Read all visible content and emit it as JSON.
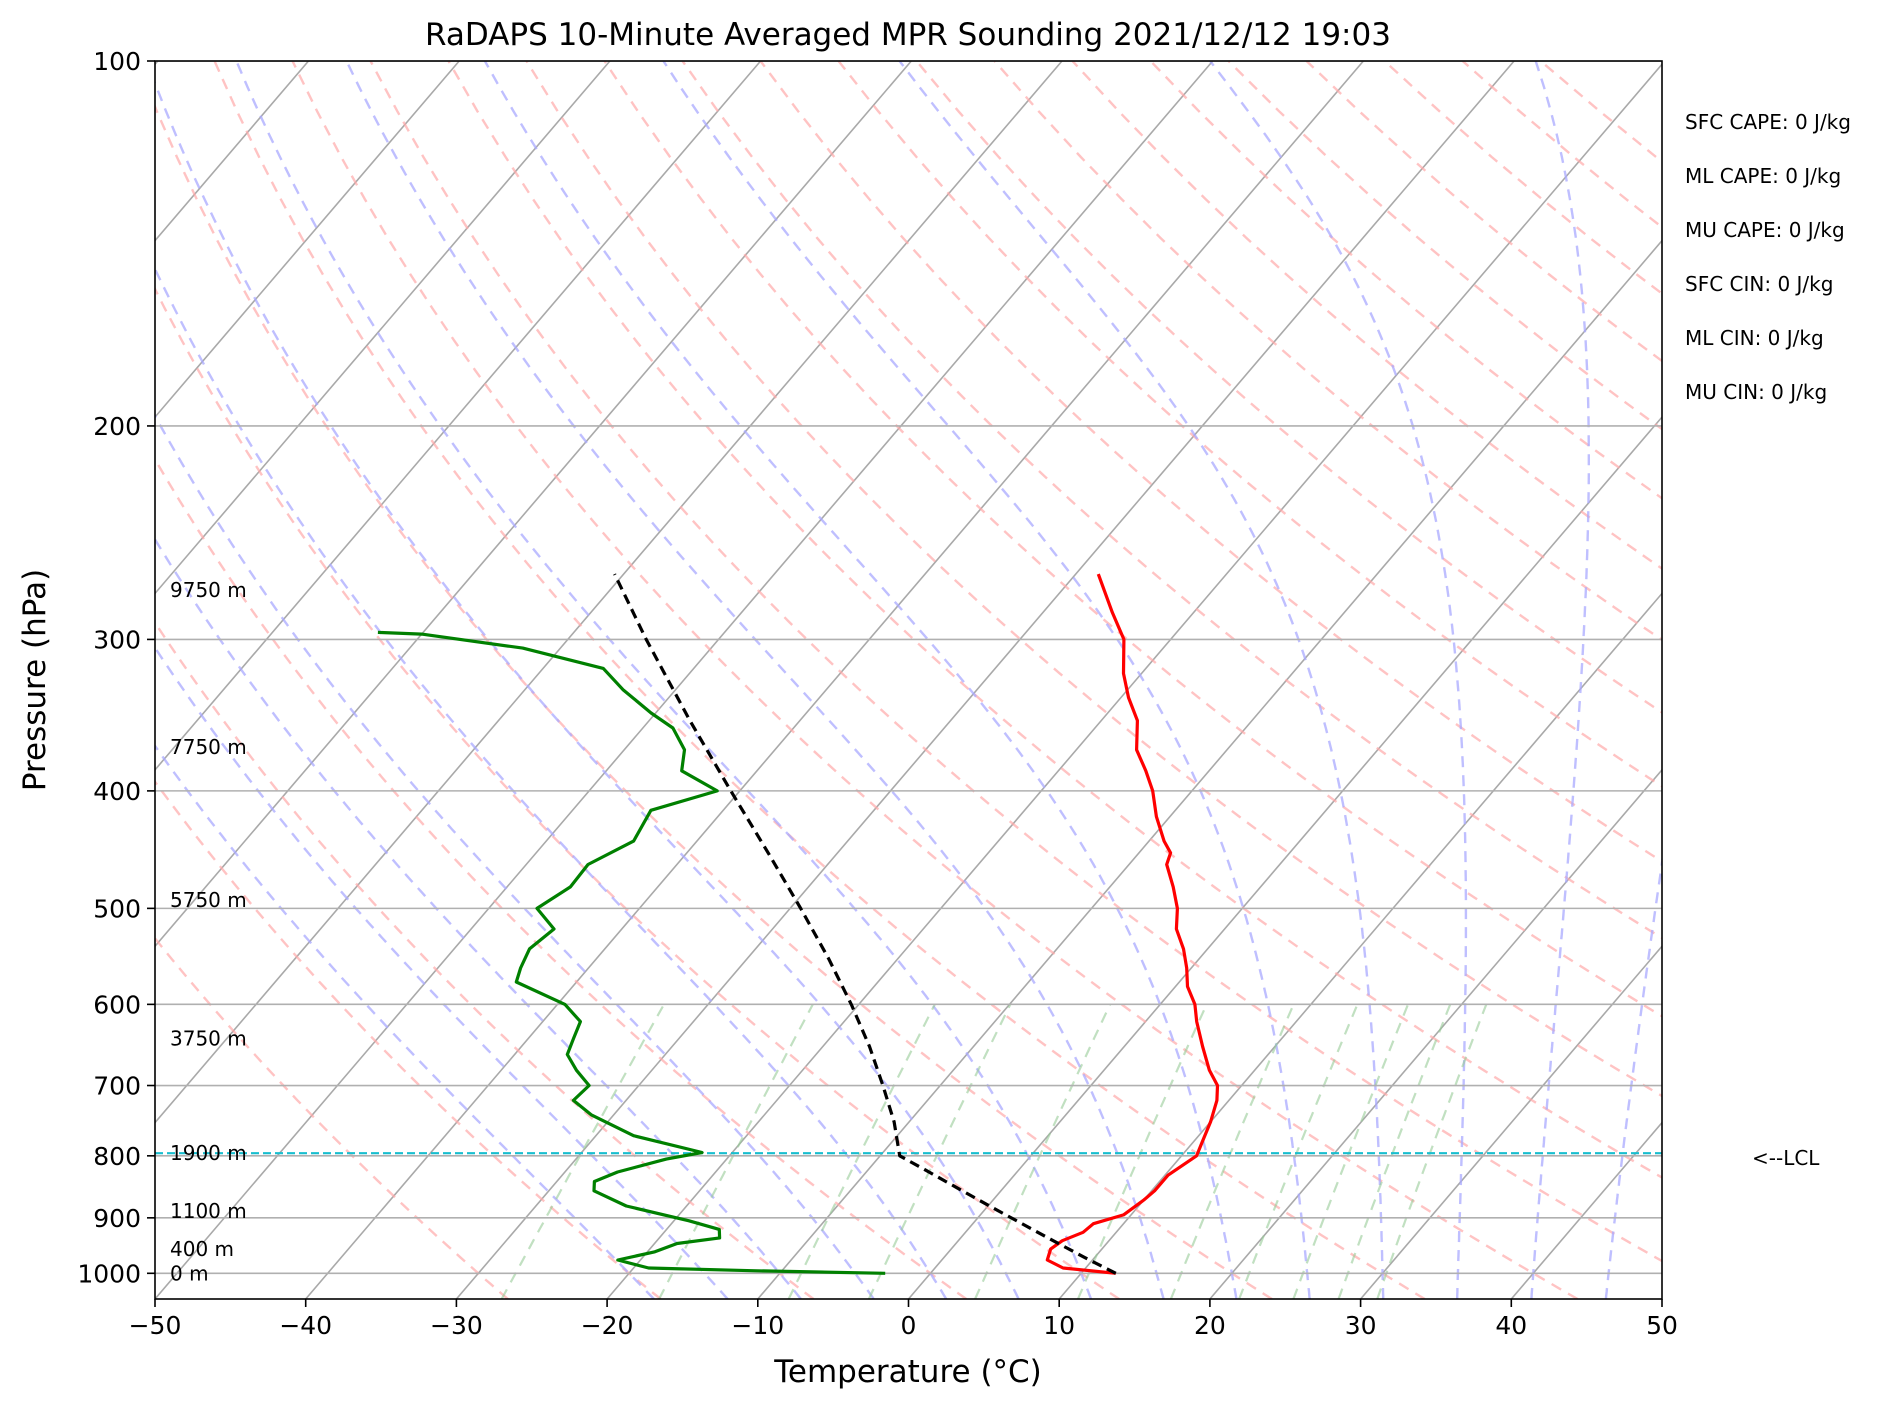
{
  "chart_data": {
    "type": "line",
    "subtype": "skew-T log-p",
    "title": "RaDAPS 10-Minute Averaged MPR Sounding 2021/12/12 19:03",
    "xlabel": "Temperature (°C)",
    "ylabel": "Pressure (hPa)",
    "xlim": [
      -50,
      50
    ],
    "ylim": [
      1050,
      100
    ],
    "y_scale": "log",
    "grid": true,
    "x_ticks": [
      "−50",
      "−40",
      "−30",
      "−20",
      "−10",
      "0",
      "10",
      "20",
      "30",
      "40",
      "50"
    ],
    "y_ticks": [
      "100",
      "200",
      "300",
      "400",
      "500",
      "600",
      "700",
      "800",
      "900",
      "1000"
    ],
    "series": [
      {
        "role": "temperature",
        "color": "#ff0000",
        "points": [
          {
            "p": 1000,
            "t": 12.3
          },
          {
            "p": 990,
            "t": 8.5
          },
          {
            "p": 975,
            "t": 7.0
          },
          {
            "p": 955,
            "t": 6.6
          },
          {
            "p": 940,
            "t": 6.9
          },
          {
            "p": 925,
            "t": 7.8
          },
          {
            "p": 910,
            "t": 8.0
          },
          {
            "p": 895,
            "t": 9.5
          },
          {
            "p": 870,
            "t": 10.0
          },
          {
            "p": 855,
            "t": 10.2
          },
          {
            "p": 830,
            "t": 10.2
          },
          {
            "p": 800,
            "t": 11.0
          },
          {
            "p": 780,
            "t": 10.6
          },
          {
            "p": 750,
            "t": 10.0
          },
          {
            "p": 720,
            "t": 9.2
          },
          {
            "p": 700,
            "t": 8.4
          },
          {
            "p": 680,
            "t": 7.0
          },
          {
            "p": 650,
            "t": 5.2
          },
          {
            "p": 620,
            "t": 3.4
          },
          {
            "p": 600,
            "t": 2.3
          },
          {
            "p": 580,
            "t": 0.8
          },
          {
            "p": 560,
            "t": -0.3
          },
          {
            "p": 540,
            "t": -1.6
          },
          {
            "p": 520,
            "t": -3.2
          },
          {
            "p": 500,
            "t": -4.3
          },
          {
            "p": 480,
            "t": -5.8
          },
          {
            "p": 460,
            "t": -7.5
          },
          {
            "p": 450,
            "t": -7.9
          },
          {
            "p": 440,
            "t": -9.0
          },
          {
            "p": 420,
            "t": -10.9
          },
          {
            "p": 400,
            "t": -12.6
          },
          {
            "p": 385,
            "t": -14.2
          },
          {
            "p": 370,
            "t": -16.0
          },
          {
            "p": 350,
            "t": -17.6
          },
          {
            "p": 335,
            "t": -19.5
          },
          {
            "p": 320,
            "t": -21.2
          },
          {
            "p": 300,
            "t": -23.1
          },
          {
            "p": 285,
            "t": -25.4
          },
          {
            "p": 265,
            "t": -28.5
          }
        ]
      },
      {
        "role": "dewpoint",
        "color": "#008000",
        "points": [
          {
            "p": 1000,
            "t": -3.0
          },
          {
            "p": 995,
            "t": -12.0
          },
          {
            "p": 990,
            "t": -19.0
          },
          {
            "p": 975,
            "t": -21.5
          },
          {
            "p": 960,
            "t": -19.5
          },
          {
            "p": 945,
            "t": -18.5
          },
          {
            "p": 935,
            "t": -16.0
          },
          {
            "p": 920,
            "t": -16.5
          },
          {
            "p": 905,
            "t": -19.0
          },
          {
            "p": 880,
            "t": -24.0
          },
          {
            "p": 855,
            "t": -27.0
          },
          {
            "p": 840,
            "t": -27.5
          },
          {
            "p": 825,
            "t": -26.5
          },
          {
            "p": 805,
            "t": -24.0
          },
          {
            "p": 795,
            "t": -22.0
          },
          {
            "p": 770,
            "t": -27.5
          },
          {
            "p": 740,
            "t": -31.5
          },
          {
            "p": 720,
            "t": -33.5
          },
          {
            "p": 700,
            "t": -33.3
          },
          {
            "p": 680,
            "t": -35.0
          },
          {
            "p": 660,
            "t": -36.5
          },
          {
            "p": 640,
            "t": -37.0
          },
          {
            "p": 620,
            "t": -37.5
          },
          {
            "p": 600,
            "t": -39.5
          },
          {
            "p": 575,
            "t": -44.0
          },
          {
            "p": 560,
            "t": -44.5
          },
          {
            "p": 540,
            "t": -45.0
          },
          {
            "p": 520,
            "t": -44.5
          },
          {
            "p": 500,
            "t": -46.8
          },
          {
            "p": 480,
            "t": -45.8
          },
          {
            "p": 460,
            "t": -45.9
          },
          {
            "p": 440,
            "t": -44.2
          },
          {
            "p": 415,
            "t": -44.8
          },
          {
            "p": 400,
            "t": -41.5
          },
          {
            "p": 385,
            "t": -45.0
          },
          {
            "p": 370,
            "t": -46.0
          },
          {
            "p": 355,
            "t": -48.0
          },
          {
            "p": 345,
            "t": -50.3
          },
          {
            "p": 330,
            "t": -53.5
          },
          {
            "p": 317,
            "t": -56.0
          },
          {
            "p": 305,
            "t": -62.5
          },
          {
            "p": 297,
            "t": -70.0
          },
          {
            "p": 296,
            "t": -73.0
          }
        ]
      },
      {
        "role": "parcel-path",
        "color": "#000000",
        "points": [
          {
            "p": 1000,
            "t": 12.3
          },
          {
            "p": 970,
            "t": 9.3
          },
          {
            "p": 940,
            "t": 6.3
          },
          {
            "p": 880,
            "t": 0.1
          },
          {
            "p": 850,
            "t": -3.1
          },
          {
            "p": 820,
            "t": -6.4
          },
          {
            "p": 800,
            "t": -8.7
          },
          {
            "p": 750,
            "t": -11.0
          },
          {
            "p": 700,
            "t": -13.8
          },
          {
            "p": 650,
            "t": -16.9
          },
          {
            "p": 600,
            "t": -20.5
          },
          {
            "p": 550,
            "t": -24.6
          },
          {
            "p": 500,
            "t": -29.3
          },
          {
            "p": 450,
            "t": -34.6
          },
          {
            "p": 400,
            "t": -40.6
          },
          {
            "p": 350,
            "t": -47.3
          },
          {
            "p": 300,
            "t": -54.8
          },
          {
            "p": 265,
            "t": -60.6
          }
        ]
      }
    ],
    "lcl": {
      "p": 796,
      "label": "<--LCL",
      "color": "#17becf"
    },
    "height_labels": [
      {
        "p": 1000,
        "text": "0 m"
      },
      {
        "p": 955,
        "text": "400 m"
      },
      {
        "p": 888,
        "text": "1100 m"
      },
      {
        "p": 796,
        "text": "1900 m"
      },
      {
        "p": 640,
        "text": "3750 m"
      },
      {
        "p": 492,
        "text": "5750 m"
      },
      {
        "p": 368,
        "text": "7750 m"
      },
      {
        "p": 273,
        "text": "9750 m"
      }
    ],
    "indices": [
      "SFC CAPE: 0 J/kg",
      "ML CAPE: 0 J/kg",
      "MU CAPE: 0 J/kg",
      "SFC CIN: 0 J/kg",
      "ML CIN: 0 J/kg",
      "MU CIN: 0 J/kg"
    ],
    "background_lines": {
      "isotherm_color": "#a9a9a9",
      "dry_adiabat_color": "#ffaaaa",
      "moist_adiabat_color": "#aaaaff",
      "mixing_ratio_color": "#98cc98"
    }
  }
}
